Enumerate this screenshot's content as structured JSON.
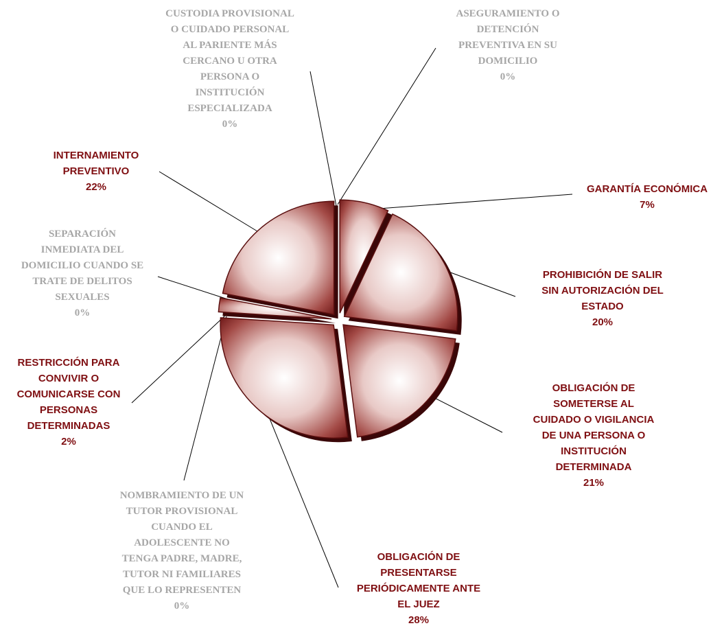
{
  "colors": {
    "slice_dark": "#5a0f0f",
    "slice_light": "#ffffff",
    "slice_mid": "#9b3b38",
    "shadow": "#3a0708",
    "label_active": "#7f0f12",
    "label_zero": "#a6a6a6",
    "leader": "#000000"
  },
  "chart_data": {
    "type": "pie",
    "title": "",
    "slices": [
      {
        "key": "garantia",
        "label": "GARANTÍA ECONÓMICA",
        "value": 7,
        "value_label": "7%"
      },
      {
        "key": "prohibicion",
        "label": "PROHIBICIÓN DE SALIR\nSIN AUTORIZACIÓN DEL\nESTADO",
        "value": 20,
        "value_label": "20%"
      },
      {
        "key": "cuidado",
        "label": "OBLIGACIÓN DE\nSOMETERSE AL\nCUIDADO O VIGILANCIA\nDE UNA PERSONA O\nINSTITUCIÓN\nDETERMINADA",
        "value": 21,
        "value_label": "21%"
      },
      {
        "key": "presentarse",
        "label": "OBLIGACIÓN DE\nPRESENTARSE\nPERIÓDICAMENTE ANTE\nEL JUEZ",
        "value": 28,
        "value_label": "28%"
      },
      {
        "key": "tutor",
        "label": "NOMBRAMIENTO DE UN\nTUTOR PROVISIONAL\nCUANDO EL\nADOLESCENTE NO\nTENGA PADRE, MADRE,\nTUTOR NI FAMILIARES\nQUE LO REPRESENTEN",
        "value": 0,
        "value_label": "0%"
      },
      {
        "key": "restriccion",
        "label": "RESTRICCIÓN PARA\nCONVIVIR O\nCOMUNICARSE CON\nPERSONAS\nDETERMINADAS",
        "value": 2,
        "value_label": "2%"
      },
      {
        "key": "separacion",
        "label": "SEPARACIÓN\nINMEDIATA DEL\nDOMICILIO CUANDO SE\nTRATE DE DELITOS\nSEXUALES",
        "value": 0,
        "value_label": "0%"
      },
      {
        "key": "internamiento",
        "label": "INTERNAMIENTO\nPREVENTIVO",
        "value": 22,
        "value_label": "22%"
      },
      {
        "key": "custodia",
        "label": "CUSTODIA PROVISIONAL\nO CUIDADO PERSONAL\nAL PARIENTE MÁS\nCERCANO U OTRA\nPERSONA O\nINSTITUCIÓN\nESPECIALIZADA",
        "value": 0,
        "value_label": "0%"
      },
      {
        "key": "aseguramiento",
        "label": "ASEGURAMIENTO O\nDETENCIÓN\nPREVENTIVA EN SU\nDOMICILIO",
        "value": 0,
        "value_label": "0%"
      }
    ]
  }
}
